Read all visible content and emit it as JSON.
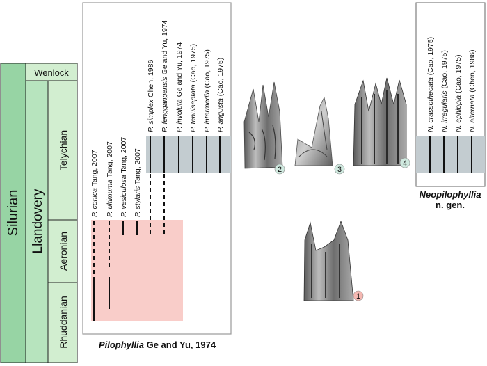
{
  "stratigraphy": {
    "system": "Silurian",
    "series_upper": "Wenlock",
    "series_lower": "Llandovery",
    "stages": [
      "Telychian",
      "Aeronian",
      "Rhuddanian"
    ]
  },
  "pilophyllia": {
    "caption_genus": "Pilophyllia",
    "caption_author": " Ge and Yu, 1974",
    "range_color": "#f9cdc9",
    "species": [
      {
        "genus": "P.",
        "epithet": "conica",
        "author": " Tang, 2007"
      },
      {
        "genus": "P.",
        "epithet": "ultimuma",
        "author": " Tang, 2007"
      },
      {
        "genus": "P.",
        "epithet": "vesiculosa",
        "author": " Tang, 2007"
      },
      {
        "genus": "P.",
        "epithet": "stylaris",
        "author": " Tang, 2007"
      },
      {
        "genus": "P.",
        "epithet": "simplex",
        "author": " Chen, 1986"
      },
      {
        "genus": "P.",
        "epithet": "fenggangensis",
        "author": " Ge and Yu, 1974"
      },
      {
        "genus": "P.",
        "epithet": "involuta",
        "author": " Ge and Yu, 1974"
      },
      {
        "genus": "P.",
        "epithet": "tenuiseptata",
        "author": " (Cao, 1975)"
      },
      {
        "genus": "P.",
        "epithet": "intermedia",
        "author": " (Cao, 1975)"
      },
      {
        "genus": "P.",
        "epithet": "angusta",
        "author": " (Cao, 1975)"
      }
    ]
  },
  "neopilophyllia": {
    "caption_genus": "Neopilophyllia",
    "caption_suffix": "n. gen.",
    "range_color": "#c3ccd0",
    "species": [
      {
        "genus": "N.",
        "epithet": "crassothecata",
        "author": " (Cao, 1975)"
      },
      {
        "genus": "N.",
        "epithet": "irregularis",
        "author": " (Cao, 1975)"
      },
      {
        "genus": "N.",
        "epithet": "ephippia",
        "author": " (Cao, 1975)"
      },
      {
        "genus": "N.",
        "epithet": "alternata",
        "author": " (Chen, 1986)"
      }
    ]
  },
  "specimens": [
    {
      "label": "1",
      "badge_color": "#f5b8b2"
    },
    {
      "label": "2",
      "badge_color": "#cfe9df"
    },
    {
      "label": "3",
      "badge_color": "#cfe9df"
    },
    {
      "label": "4",
      "badge_color": "#cfe9df"
    }
  ],
  "colors": {
    "silurian": "#97d4a4",
    "llandovery": "#b7e4be",
    "stage": "#d2eed0",
    "telychian_band": "#c3ccd0"
  }
}
